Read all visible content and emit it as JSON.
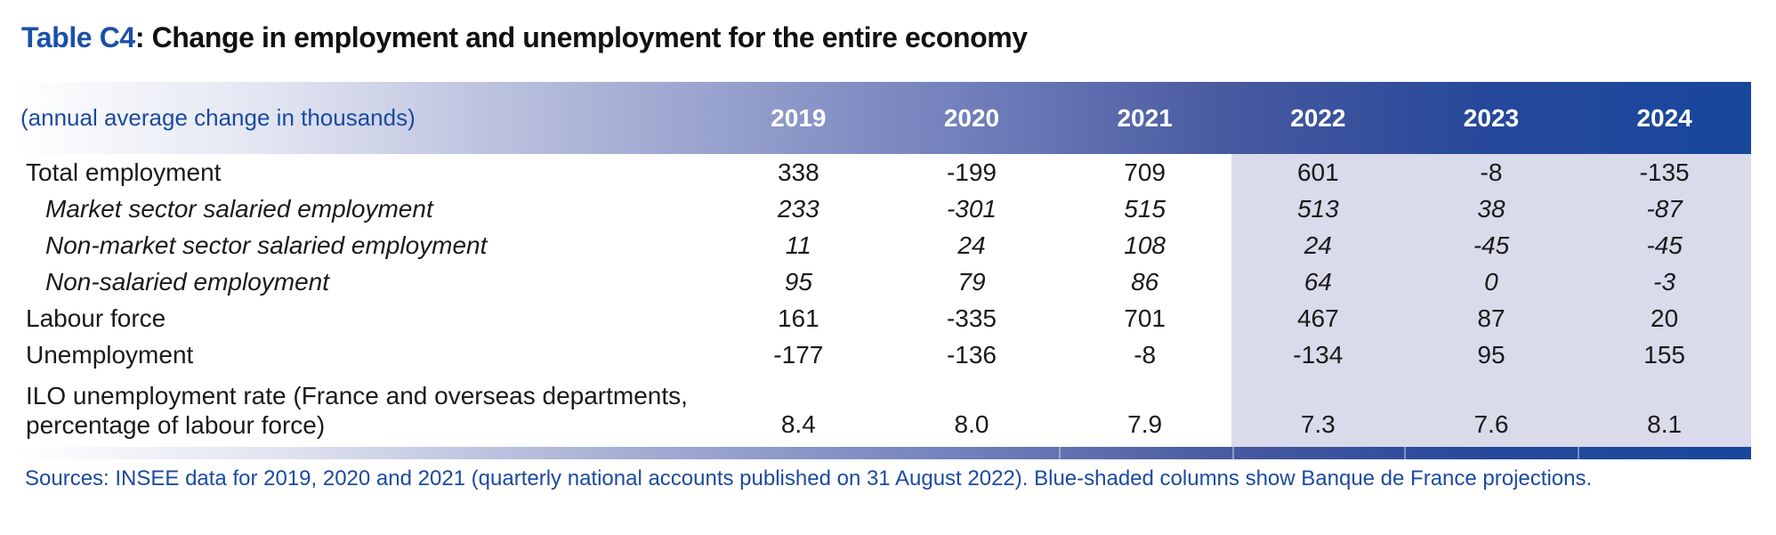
{
  "title": {
    "prefix": "Table C4",
    "separator": ": ",
    "text": "Change in employment and unemployment for the entire economy"
  },
  "header": {
    "unit_label": "(annual average change in thousands)",
    "years": [
      "2019",
      "2020",
      "2021",
      "2022",
      "2023",
      "2024"
    ]
  },
  "table": {
    "rows": [
      {
        "label": "Total employment",
        "style": "main",
        "values": [
          "338",
          "-199",
          "709",
          "601",
          "-8",
          "-135"
        ]
      },
      {
        "label": "Market sector salaried employment",
        "style": "sub",
        "values": [
          "233",
          "-301",
          "515",
          "513",
          "38",
          "-87"
        ]
      },
      {
        "label": "Non-market sector salaried employment",
        "style": "sub",
        "values": [
          "11",
          "24",
          "108",
          "24",
          "-45",
          "-45"
        ]
      },
      {
        "label": "Non-salaried employment",
        "style": "sub",
        "values": [
          "95",
          "79",
          "86",
          "64",
          "0",
          "-3"
        ]
      },
      {
        "label": "Labour force",
        "style": "main",
        "values": [
          "161",
          "-335",
          "701",
          "467",
          "87",
          "20"
        ]
      },
      {
        "label": "Unemployment",
        "style": "main",
        "values": [
          "-177",
          "-136",
          "-8",
          "-134",
          "95",
          "155"
        ]
      },
      {
        "label_line1": "ILO unemployment rate (France and overseas departments,",
        "label_line2": "percentage of labour force)",
        "style": "main",
        "values": [
          "8.4",
          "8.0",
          "7.9",
          "7.3",
          "7.6",
          "8.1"
        ]
      }
    ]
  },
  "footer": {
    "sources": "Sources: INSEE data for 2019, 2020 and 2021 (quarterly national accounts published on 31 August 2022). Blue-shaded columns show Banque de France projections."
  },
  "colors": {
    "accent_blue": "#1a50aa",
    "text_blue": "#1b4a9e",
    "gradient_end": "#17479c",
    "projection_shade": "#d9daea",
    "body_text": "#1a1a1a"
  },
  "chart_data": {
    "type": "table",
    "title": "Table C4: Change in employment and unemployment for the entire economy",
    "unit": "annual average change in thousands",
    "columns": [
      "2019",
      "2020",
      "2021",
      "2022",
      "2023",
      "2024"
    ],
    "projection_columns": [
      "2022",
      "2023",
      "2024"
    ],
    "series": [
      {
        "name": "Total employment",
        "values": [
          338,
          -199,
          709,
          601,
          -8,
          -135
        ]
      },
      {
        "name": "Market sector salaried employment",
        "values": [
          233,
          -301,
          515,
          513,
          38,
          -87
        ]
      },
      {
        "name": "Non-market sector salaried employment",
        "values": [
          11,
          24,
          108,
          24,
          -45,
          -45
        ]
      },
      {
        "name": "Non-salaried employment",
        "values": [
          95,
          79,
          86,
          64,
          0,
          -3
        ]
      },
      {
        "name": "Labour force",
        "values": [
          161,
          -335,
          701,
          467,
          87,
          20
        ]
      },
      {
        "name": "Unemployment",
        "values": [
          -177,
          -136,
          -8,
          -134,
          95,
          155
        ]
      },
      {
        "name": "ILO unemployment rate (France and overseas departments, percentage of labour force)",
        "values": [
          8.4,
          8.0,
          7.9,
          7.3,
          7.6,
          8.1
        ]
      }
    ],
    "source": "Sources: INSEE data for 2019, 2020 and 2021 (quarterly national accounts published on 31 August 2022). Blue-shaded columns show Banque de France projections."
  }
}
